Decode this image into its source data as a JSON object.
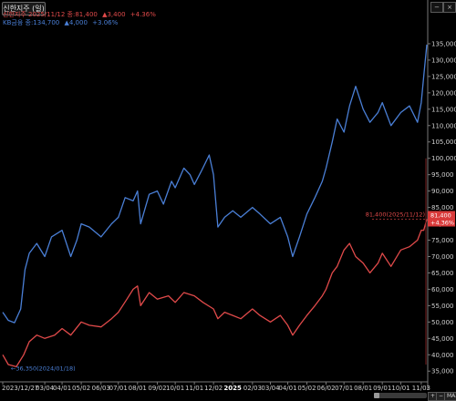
{
  "header": {
    "tab_label": "신한지주 (일)",
    "legend": [
      {
        "name": "신한지주",
        "text": "신한지주 2025/11/12 종:81,400",
        "change": "▲3,400",
        "pct": "+4.36%",
        "color": "#e04a4a"
      },
      {
        "name": "KB금융",
        "text": "KB금융 종:134,700",
        "change": "▲4,000",
        "pct": "+3.06%",
        "color": "#4a7fd6"
      }
    ]
  },
  "controls": {
    "zoom_in": "+",
    "zoom_out": "−",
    "max_label": "MAX",
    "minimize": "−",
    "close": "×"
  },
  "chart_data": {
    "type": "line",
    "y_axis": {
      "range": [
        32000,
        140000
      ],
      "tick_labels": [
        "135,000",
        "130,000",
        "125,000",
        "120,000",
        "115,000",
        "110,000",
        "105,000",
        "100,000",
        "95,000",
        "90,000",
        "85,000",
        "80,000",
        "75,000",
        "70,000",
        "65,000",
        "60,000",
        "55,000",
        "50,000",
        "45,000",
        "40,000",
        "35,000"
      ]
    },
    "x_axis": {
      "tick_labels": [
        {
          "label": "2023/12/27",
          "x": "2023-12-27"
        },
        {
          "label": "03/04",
          "x": "2024-03-04"
        },
        {
          "label": "04/01",
          "x": "2024-04-01"
        },
        {
          "label": "05/02",
          "x": "2024-05-02"
        },
        {
          "label": "06/03",
          "x": "2024-06-03"
        },
        {
          "label": "07/01",
          "x": "2024-07-01"
        },
        {
          "label": "08/01",
          "x": "2024-08-01"
        },
        {
          "label": "09/02",
          "x": "2024-09-02"
        },
        {
          "label": "10/01",
          "x": "2024-10-01"
        },
        {
          "label": "11/01",
          "x": "2024-11-01"
        },
        {
          "label": "12/02",
          "x": "2024-12-02"
        },
        {
          "label": "2025",
          "x": "2025-01-02",
          "year": true
        },
        {
          "label": "02/03",
          "x": "2025-02-03"
        },
        {
          "label": "03/04",
          "x": "2025-03-04"
        },
        {
          "label": "04/01",
          "x": "2025-04-01"
        },
        {
          "label": "05/02",
          "x": "2025-05-02"
        },
        {
          "label": "06/02",
          "x": "2025-06-02"
        },
        {
          "label": "07/01",
          "x": "2025-07-01"
        },
        {
          "label": "08/01",
          "x": "2025-08-01"
        },
        {
          "label": "09/01",
          "x": "2025-09-01"
        },
        {
          "label": "10/01",
          "x": "2025-10-01"
        },
        {
          "label": "11/03",
          "x": "2025-11-03"
        }
      ],
      "range": [
        "2023-12-27",
        "2025-11-12"
      ]
    },
    "series": [
      {
        "name": "KB금융",
        "color": "#4a7fd6",
        "points": [
          [
            "2023-12-27",
            53000
          ],
          [
            "2024-01-05",
            50500
          ],
          [
            "2024-01-15",
            49800
          ],
          [
            "2024-01-25",
            54000
          ],
          [
            "2024-02-01",
            66000
          ],
          [
            "2024-02-08",
            71000
          ],
          [
            "2024-02-20",
            74000
          ],
          [
            "2024-03-04",
            70000
          ],
          [
            "2024-03-15",
            76000
          ],
          [
            "2024-04-01",
            78000
          ],
          [
            "2024-04-15",
            70000
          ],
          [
            "2024-04-25",
            75000
          ],
          [
            "2024-05-02",
            80000
          ],
          [
            "2024-05-15",
            79000
          ],
          [
            "2024-06-03",
            76000
          ],
          [
            "2024-06-20",
            80000
          ],
          [
            "2024-07-01",
            82000
          ],
          [
            "2024-07-12",
            88000
          ],
          [
            "2024-07-25",
            87000
          ],
          [
            "2024-08-01",
            90000
          ],
          [
            "2024-08-06",
            80000
          ],
          [
            "2024-08-20",
            89000
          ],
          [
            "2024-09-02",
            90000
          ],
          [
            "2024-09-12",
            86000
          ],
          [
            "2024-09-25",
            93000
          ],
          [
            "2024-10-01",
            91000
          ],
          [
            "2024-10-15",
            97000
          ],
          [
            "2024-10-25",
            95000
          ],
          [
            "2024-11-01",
            92000
          ],
          [
            "2024-11-12",
            96000
          ],
          [
            "2024-11-25",
            101000
          ],
          [
            "2024-12-02",
            95000
          ],
          [
            "2024-12-09",
            79000
          ],
          [
            "2024-12-20",
            82000
          ],
          [
            "2025-01-02",
            84000
          ],
          [
            "2025-01-15",
            82000
          ],
          [
            "2025-02-03",
            85000
          ],
          [
            "2025-02-15",
            83000
          ],
          [
            "2025-03-04",
            80000
          ],
          [
            "2025-03-20",
            82000
          ],
          [
            "2025-04-01",
            76000
          ],
          [
            "2025-04-09",
            70000
          ],
          [
            "2025-04-20",
            76000
          ],
          [
            "2025-05-02",
            83000
          ],
          [
            "2025-05-15",
            88000
          ],
          [
            "2025-05-27",
            93000
          ],
          [
            "2025-06-02",
            97000
          ],
          [
            "2025-06-12",
            105000
          ],
          [
            "2025-06-20",
            112000
          ],
          [
            "2025-07-01",
            108000
          ],
          [
            "2025-07-10",
            116000
          ],
          [
            "2025-07-20",
            122000
          ],
          [
            "2025-08-01",
            115000
          ],
          [
            "2025-08-12",
            111000
          ],
          [
            "2025-08-25",
            114000
          ],
          [
            "2025-09-01",
            117000
          ],
          [
            "2025-09-15",
            110000
          ],
          [
            "2025-10-01",
            114000
          ],
          [
            "2025-10-15",
            116000
          ],
          [
            "2025-10-28",
            111000
          ],
          [
            "2025-11-03",
            117000
          ],
          [
            "2025-11-07",
            125000
          ],
          [
            "2025-11-12",
            134700
          ]
        ]
      },
      {
        "name": "신한지주",
        "color": "#e04a4a",
        "points": [
          [
            "2023-12-27",
            40000
          ],
          [
            "2024-01-05",
            37000
          ],
          [
            "2024-01-18",
            36350
          ],
          [
            "2024-01-30",
            40000
          ],
          [
            "2024-02-08",
            44000
          ],
          [
            "2024-02-20",
            46000
          ],
          [
            "2024-03-04",
            45000
          ],
          [
            "2024-03-20",
            46000
          ],
          [
            "2024-04-01",
            48000
          ],
          [
            "2024-04-15",
            46000
          ],
          [
            "2024-05-02",
            50000
          ],
          [
            "2024-05-15",
            49000
          ],
          [
            "2024-06-03",
            48500
          ],
          [
            "2024-06-20",
            51000
          ],
          [
            "2024-07-01",
            53000
          ],
          [
            "2024-07-15",
            57000
          ],
          [
            "2024-07-25",
            60000
          ],
          [
            "2024-08-01",
            61000
          ],
          [
            "2024-08-06",
            55000
          ],
          [
            "2024-08-20",
            59000
          ],
          [
            "2024-09-02",
            57000
          ],
          [
            "2024-09-20",
            58000
          ],
          [
            "2024-10-01",
            56000
          ],
          [
            "2024-10-15",
            59000
          ],
          [
            "2024-11-01",
            58000
          ],
          [
            "2024-11-15",
            56000
          ],
          [
            "2024-12-02",
            54000
          ],
          [
            "2024-12-09",
            51000
          ],
          [
            "2024-12-20",
            53000
          ],
          [
            "2025-01-02",
            52000
          ],
          [
            "2025-01-15",
            51000
          ],
          [
            "2025-02-03",
            54000
          ],
          [
            "2025-02-15",
            52000
          ],
          [
            "2025-03-04",
            50000
          ],
          [
            "2025-03-20",
            52000
          ],
          [
            "2025-04-01",
            49000
          ],
          [
            "2025-04-09",
            46000
          ],
          [
            "2025-04-20",
            49000
          ],
          [
            "2025-05-02",
            52000
          ],
          [
            "2025-05-15",
            55000
          ],
          [
            "2025-05-27",
            58000
          ],
          [
            "2025-06-02",
            60000
          ],
          [
            "2025-06-12",
            65000
          ],
          [
            "2025-06-20",
            67000
          ],
          [
            "2025-07-01",
            72000
          ],
          [
            "2025-07-10",
            74000
          ],
          [
            "2025-07-20",
            70000
          ],
          [
            "2025-08-01",
            68000
          ],
          [
            "2025-08-12",
            65000
          ],
          [
            "2025-08-25",
            68000
          ],
          [
            "2025-09-01",
            71000
          ],
          [
            "2025-09-15",
            67000
          ],
          [
            "2025-10-01",
            72000
          ],
          [
            "2025-10-15",
            73000
          ],
          [
            "2025-10-28",
            75000
          ],
          [
            "2025-11-03",
            78000
          ],
          [
            "2025-11-07",
            78000
          ],
          [
            "2025-11-12",
            81400
          ]
        ]
      }
    ],
    "annotations": {
      "low_label": "←36,350(2024/01/18)",
      "last_label": "81,400(2025/11/12)",
      "price_tag_line1": "81,400",
      "price_tag_line2": "+4.36%"
    },
    "grid": false
  }
}
